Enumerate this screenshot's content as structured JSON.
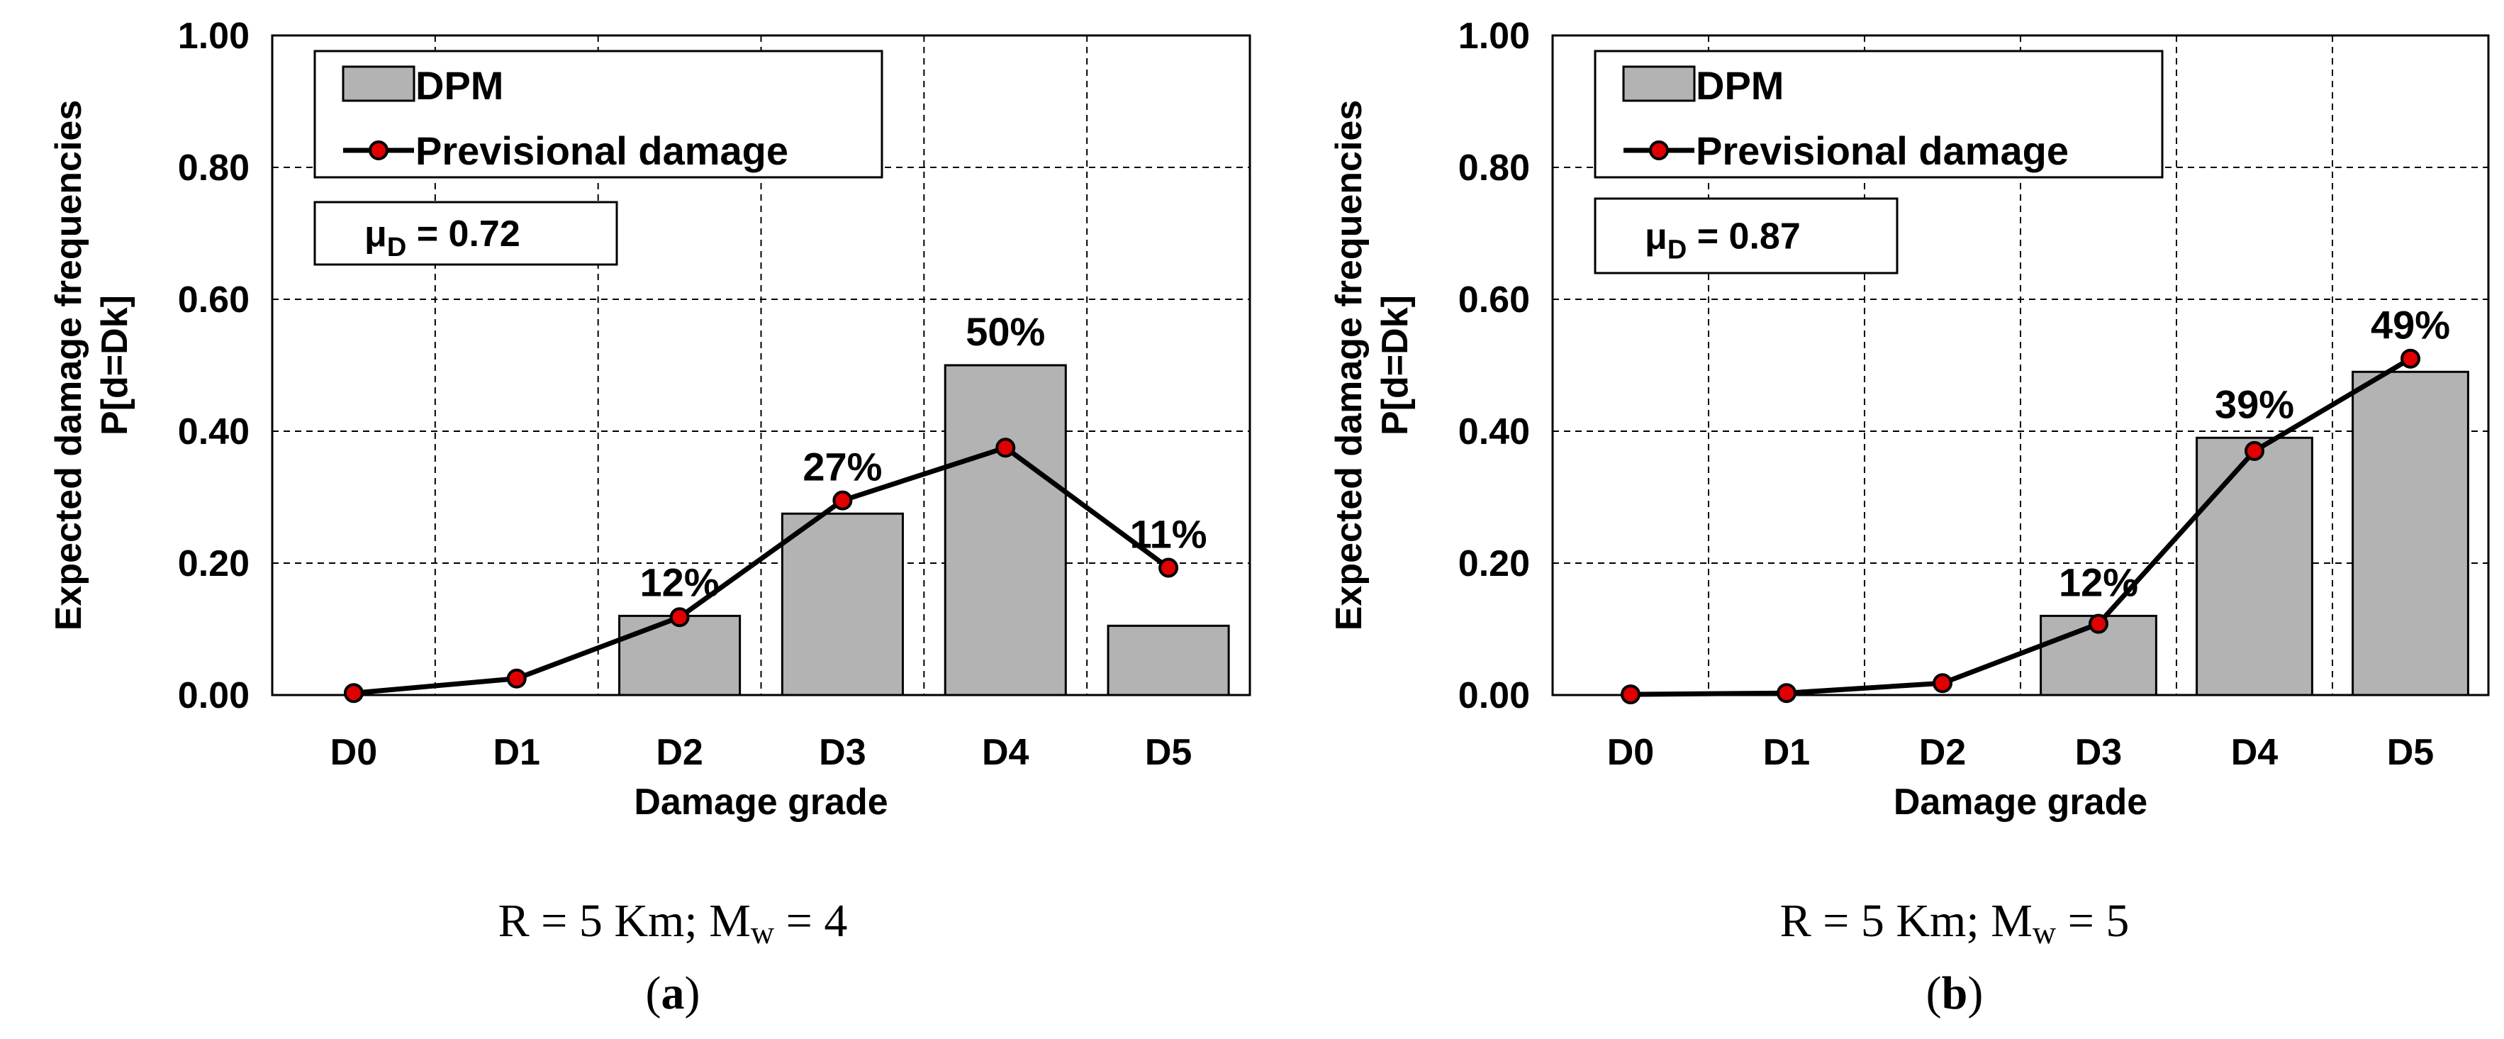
{
  "chart_data": [
    {
      "type": "bar",
      "panel_id": "a",
      "categories": [
        "D0",
        "D1",
        "D2",
        "D3",
        "D4",
        "D5"
      ],
      "series": [
        {
          "name": "DPM",
          "type": "bar",
          "values": [
            0.0,
            0.0,
            0.12,
            0.275,
            0.5,
            0.105
          ]
        },
        {
          "name": "Previsional damage",
          "type": "line",
          "values": [
            0.003,
            0.025,
            0.118,
            0.295,
            0.375,
            0.193
          ]
        }
      ],
      "labels": [
        {
          "category": "D2",
          "text": "12%"
        },
        {
          "category": "D3",
          "text": "27%"
        },
        {
          "category": "D4",
          "text": "50%"
        },
        {
          "category": "D5",
          "text": "11%"
        }
      ],
      "mu_label": "μ",
      "mu_sub": "D",
      "mu_value": " = 0.72",
      "xlabel": "Damage grade",
      "ylabel_line1": "Expected damage frequencies",
      "ylabel_line2": "P[d=Dk]",
      "ylim": [
        0,
        1
      ],
      "yticks": [
        "0.00",
        "0.20",
        "0.40",
        "0.60",
        "0.80",
        "1.00"
      ],
      "caption_main": "R = 5 Km; M",
      "caption_sub": "w",
      "caption_tail": " = 4",
      "panel_label": "(a)"
    },
    {
      "type": "bar",
      "panel_id": "b",
      "categories": [
        "D0",
        "D1",
        "D2",
        "D3",
        "D4",
        "D5"
      ],
      "series": [
        {
          "name": "DPM",
          "type": "bar",
          "values": [
            0.0,
            0.0,
            0.0,
            0.12,
            0.39,
            0.49
          ]
        },
        {
          "name": "Previsional damage",
          "type": "line",
          "values": [
            0.001,
            0.003,
            0.018,
            0.108,
            0.37,
            0.51
          ]
        }
      ],
      "labels": [
        {
          "category": "D3",
          "text": "12%"
        },
        {
          "category": "D4",
          "text": "39%"
        },
        {
          "category": "D5",
          "text": "49%"
        }
      ],
      "mu_label": "μ",
      "mu_sub": "D",
      "mu_value": " = 0.87",
      "xlabel": "Damage grade",
      "ylabel_line1": "Expected damage frequencies",
      "ylabel_line2": "P[d=Dk]",
      "ylim": [
        0,
        1
      ],
      "yticks": [
        "0.00",
        "0.20",
        "0.40",
        "0.60",
        "0.80",
        "1.00"
      ],
      "caption_main": "R = 5 Km; M",
      "caption_sub": "w",
      "caption_tail": " = 5",
      "panel_label": "(b)"
    }
  ],
  "legend": {
    "bar_label": "DPM",
    "line_label": "Previsional damage"
  },
  "colors": {
    "bar_fill": "#b3b3b3",
    "marker_fill": "#e00000",
    "line": "#000000"
  }
}
